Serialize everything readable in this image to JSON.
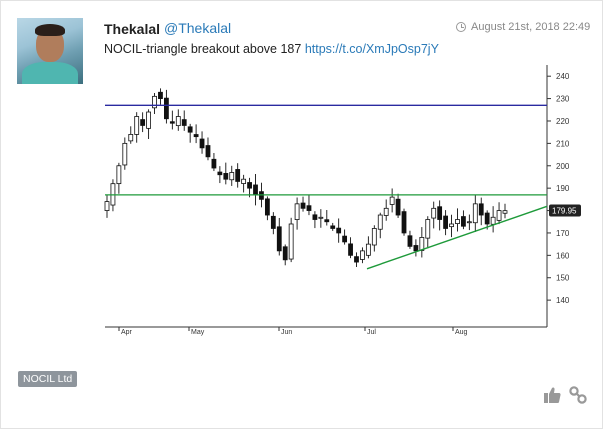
{
  "post": {
    "author_name": "Thekalal",
    "handle": "@Thekalal",
    "timestamp": "August 21st, 2018 22:49",
    "text": "NOCIL-triangle breakout above 187",
    "link": "https://t.co/XmJpOsp7jY",
    "tag": "NOCIL Ltd"
  },
  "icons": {
    "clock": "clock-icon",
    "like": "thumbs-up-icon",
    "share": "link-icon"
  },
  "colors": {
    "resistance_line": "#2a2aa0",
    "support_line": "#1e9a3a",
    "price_badge": "#222222",
    "link": "#2a7ab8"
  },
  "chart_data": {
    "type": "candlestick",
    "y_ticks": [
      140,
      150,
      160,
      170,
      180,
      190,
      200,
      210,
      220,
      230,
      240
    ],
    "ylim": [
      128,
      245
    ],
    "x_labels": [
      "Apr",
      "May",
      "Jun",
      "Jul",
      "Aug"
    ],
    "last_price": "179.95",
    "horizontal_lines": [
      {
        "value": 227,
        "color": "#2a2aa0"
      },
      {
        "value": 187,
        "color": "#1e9a3a"
      }
    ],
    "trend_line": {
      "from": {
        "x": "2018-07-01",
        "y": 154
      },
      "to": {
        "x": "2018-08-23",
        "y": 181
      }
    },
    "close_series": [
      184,
      192,
      200,
      210,
      214,
      222,
      218,
      224,
      231,
      230,
      221,
      219,
      222,
      218,
      215,
      213,
      208,
      204,
      199,
      196,
      194,
      197,
      193,
      194,
      190,
      187,
      185,
      178,
      172,
      162,
      158,
      174,
      183,
      181,
      180,
      176,
      177,
      175,
      172,
      170,
      166,
      160,
      157,
      162,
      165,
      172,
      178,
      181,
      186,
      178,
      170,
      164,
      162,
      168,
      176,
      181,
      176,
      172,
      174,
      176,
      173,
      175,
      183,
      178,
      174,
      177,
      180,
      179.95
    ]
  }
}
